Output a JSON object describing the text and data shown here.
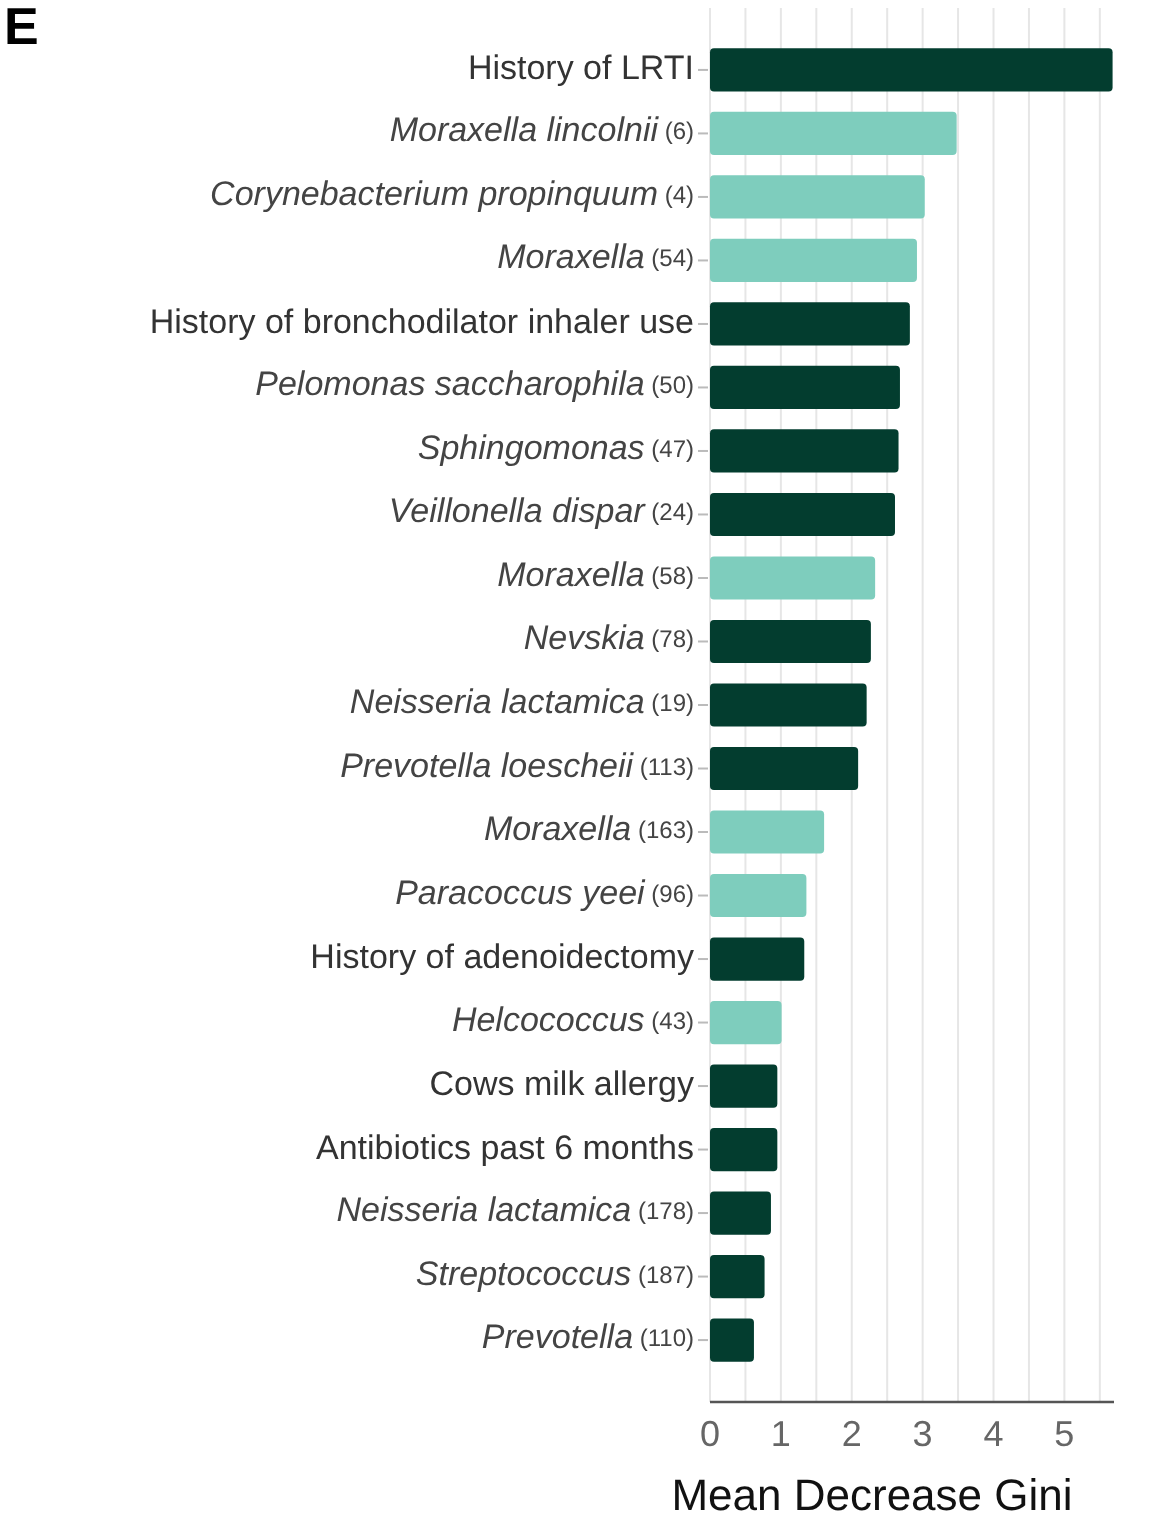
{
  "chart_data": {
    "type": "bar",
    "orientation": "horizontal",
    "xlabel": "Mean Decrease Gini",
    "annotations": [
      "E"
    ],
    "categories": [
      "History of LRTI",
      "Moraxella lincolnii (6)",
      "Corynebacterium propinquum (4)",
      "Moraxella (54)",
      "History of bronchodilator inhaler use",
      "Pelomonas saccharophila (50)",
      "Sphingomonas (47)",
      "Veillonella dispar (24)",
      "Moraxella (58)",
      "Nevskia (78)",
      "Neisseria lactamica (19)",
      "Prevotella loescheii (113)",
      "Moraxella (163)",
      "Paracoccus yeei (96)",
      "History of adenoidectomy",
      "Helcococcus (43)",
      "Cows milk allergy",
      "Antibiotics past 6 months",
      "Neisseria lactamica (178)",
      "Streptococcus (187)",
      "Prevotella (110)"
    ],
    "values": [
      5.68,
      3.48,
      3.03,
      2.92,
      2.82,
      2.68,
      2.66,
      2.61,
      2.33,
      2.27,
      2.21,
      2.09,
      1.61,
      1.36,
      1.33,
      1.01,
      0.95,
      0.95,
      0.86,
      0.77,
      0.62
    ],
    "colors": [
      "#033d2f",
      "#7ecdbd",
      "#7ecdbd",
      "#7ecdbd",
      "#033d2f",
      "#033d2f",
      "#033d2f",
      "#033d2f",
      "#7ecdbd",
      "#033d2f",
      "#033d2f",
      "#033d2f",
      "#7ecdbd",
      "#7ecdbd",
      "#033d2f",
      "#7ecdbd",
      "#033d2f",
      "#033d2f",
      "#033d2f",
      "#033d2f",
      "#033d2f"
    ],
    "xlim": [
      0,
      5.7
    ],
    "xticks": [
      0,
      {
        "value": 0.5,
        "label": null
      },
      1,
      {
        "value": 1.5,
        "label": null
      },
      2,
      {
        "value": 2.5,
        "label": null
      },
      3,
      {
        "value": 3.5,
        "label": null
      },
      4,
      {
        "value": 4.5,
        "label": null
      },
      5,
      {
        "value": 5.5,
        "label": null
      }
    ],
    "grid": "x"
  }
}
